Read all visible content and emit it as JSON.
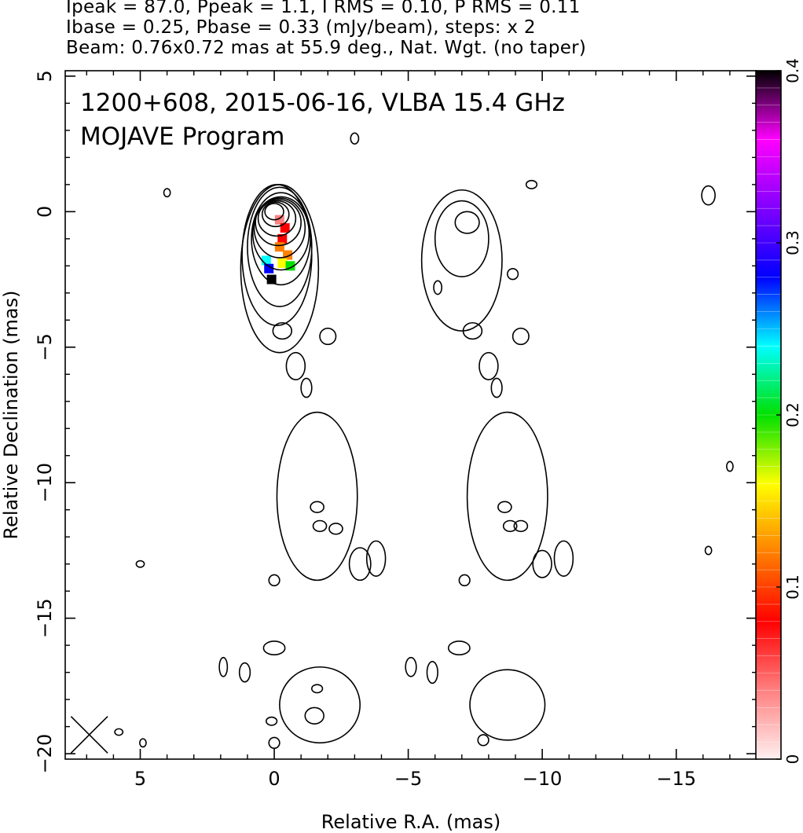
{
  "header": {
    "line1": "Ipeak = 87.0, Ppeak = 1.1, I RMS = 0.10, P RMS = 0.11",
    "line2": "Ibase = 0.25, Pbase = 0.33 (mJy/beam), steps: x 2",
    "line3": "Beam: 0.76x0.72 mas at 55.9 deg., Nat. Wgt. (no taper)"
  },
  "annotations": {
    "source_line": "1200+608, 2015-06-16, VLBA 15.4 GHz",
    "program_line": "MOJAVE Program"
  },
  "colors": {
    "contour": "#000000",
    "colorbar_stops": [
      "#fff0f0",
      "#ff8080",
      "#ff0000",
      "#ff8000",
      "#ffff00",
      "#00e000",
      "#00ffff",
      "#0000ff",
      "#8000ff",
      "#ff00ff",
      "#000000"
    ]
  },
  "chart_data": {
    "type": "heatmap",
    "title": "1200+608, 2015-06-16, VLBA 15.4 GHz",
    "xlabel": "Relative R.A. (mas)",
    "ylabel": "Relative Declination (mas)",
    "xlim": [
      7.8,
      -18.0
    ],
    "ylim": [
      -20.2,
      5.2
    ],
    "x_ticks": [
      5,
      0,
      -5,
      -10,
      -15
    ],
    "x_tick_labels": [
      "5",
      "0",
      "−5",
      "−10",
      "−15"
    ],
    "y_ticks": [
      5,
      0,
      -5,
      -10,
      -15,
      -20
    ],
    "y_tick_labels": [
      "5",
      "0",
      "−5",
      "−10",
      "−15",
      "−20"
    ],
    "colorbar": {
      "range": [
        0,
        0.4
      ],
      "ticks": [
        0,
        0.1,
        0.2,
        0.3,
        0.4
      ],
      "tick_labels": [
        "0",
        "0.1",
        "0.2",
        "0.3",
        "0.4"
      ]
    },
    "core": {
      "ra": 0.0,
      "dec": 0.0
    },
    "contour_levels_mJy_per_beam": [
      0.25,
      0.5,
      1,
      2,
      4,
      8,
      16,
      32,
      64
    ],
    "core_contours": [
      {
        "ra": 0.0,
        "dec": 0.0,
        "a": 0.35,
        "b": 0.3
      },
      {
        "ra": -0.05,
        "dec": -0.1,
        "a": 0.5,
        "b": 0.45
      },
      {
        "ra": -0.1,
        "dec": -0.25,
        "a": 0.7,
        "b": 0.65
      },
      {
        "ra": -0.15,
        "dec": -0.4,
        "a": 0.85,
        "b": 0.85
      },
      {
        "ra": -0.2,
        "dec": -0.6,
        "a": 0.95,
        "b": 1.1
      },
      {
        "ra": -0.25,
        "dec": -0.8,
        "a": 1.05,
        "b": 1.35
      },
      {
        "ra": -0.25,
        "dec": -1.0,
        "a": 1.1,
        "b": 1.7
      },
      {
        "ra": -0.2,
        "dec": -1.3,
        "a": 1.2,
        "b": 2.2
      },
      {
        "ra": -0.1,
        "dec": -1.6,
        "a": 1.3,
        "b": 2.6
      },
      {
        "ra": -0.2,
        "dec": -2.1,
        "a": 1.45,
        "b": 3.1
      }
    ],
    "fractional_polarization": [
      {
        "ra": -0.2,
        "dec": -0.3,
        "value": 0.05
      },
      {
        "ra": -0.4,
        "dec": -0.6,
        "value": 0.06
      },
      {
        "ra": -0.3,
        "dec": -1.0,
        "value": 0.07
      },
      {
        "ra": -0.2,
        "dec": -1.3,
        "value": 0.1
      },
      {
        "ra": -0.5,
        "dec": -1.6,
        "value": 0.12
      },
      {
        "ra": -0.3,
        "dec": -1.9,
        "value": 0.15
      },
      {
        "ra": -0.6,
        "dec": -2.0,
        "value": 0.18
      },
      {
        "ra": 0.3,
        "dec": -1.8,
        "value": 0.25
      },
      {
        "ra": 0.2,
        "dec": -2.1,
        "value": 0.3
      },
      {
        "ra": 0.1,
        "dec": -2.5,
        "value": 0.4
      }
    ],
    "pol_contours": [
      {
        "ra": -7.2,
        "dec": -0.4,
        "a": 0.45,
        "b": 0.4
      },
      {
        "ra": -7.0,
        "dec": -1.0,
        "a": 1.0,
        "b": 1.4
      },
      {
        "ra": -7.0,
        "dec": -1.8,
        "a": 1.5,
        "b": 2.6
      }
    ],
    "spurious_islands": [
      {
        "ra": 4.0,
        "dec": 0.7,
        "a": 0.12,
        "b": 0.15
      },
      {
        "ra": -3.0,
        "dec": 2.7,
        "a": 0.15,
        "b": 0.2
      },
      {
        "ra": -9.6,
        "dec": 1.0,
        "a": 0.2,
        "b": 0.15
      },
      {
        "ra": -16.2,
        "dec": 0.6,
        "a": 0.25,
        "b": 0.35
      },
      {
        "ra": -0.3,
        "dec": -4.4,
        "a": 0.35,
        "b": 0.3
      },
      {
        "ra": -2.0,
        "dec": -4.6,
        "a": 0.3,
        "b": 0.3
      },
      {
        "ra": -0.8,
        "dec": -5.7,
        "a": 0.35,
        "b": 0.5
      },
      {
        "ra": -1.2,
        "dec": -6.5,
        "a": 0.2,
        "b": 0.35
      },
      {
        "ra": -7.4,
        "dec": -4.4,
        "a": 0.35,
        "b": 0.3
      },
      {
        "ra": -9.2,
        "dec": -4.6,
        "a": 0.3,
        "b": 0.3
      },
      {
        "ra": -8.0,
        "dec": -5.7,
        "a": 0.35,
        "b": 0.5
      },
      {
        "ra": -8.3,
        "dec": -6.5,
        "a": 0.2,
        "b": 0.35
      },
      {
        "ra": 0.0,
        "dec": -13.6,
        "a": 0.2,
        "b": 0.2
      },
      {
        "ra": -7.1,
        "dec": -13.6,
        "a": 0.2,
        "b": 0.2
      },
      {
        "ra": 1.9,
        "dec": -16.8,
        "a": 0.15,
        "b": 0.35
      },
      {
        "ra": 1.1,
        "dec": -17.0,
        "a": 0.2,
        "b": 0.35
      },
      {
        "ra": -5.1,
        "dec": -16.8,
        "a": 0.2,
        "b": 0.35
      },
      {
        "ra": -5.9,
        "dec": -17.0,
        "a": 0.2,
        "b": 0.4
      },
      {
        "ra": 0.0,
        "dec": -16.1,
        "a": 0.4,
        "b": 0.25
      },
      {
        "ra": -6.9,
        "dec": -16.1,
        "a": 0.4,
        "b": 0.25
      },
      {
        "ra": 0.0,
        "dec": -19.6,
        "a": 0.2,
        "b": 0.2
      },
      {
        "ra": -7.8,
        "dec": -19.5,
        "a": 0.2,
        "b": 0.2
      },
      {
        "ra": 0.1,
        "dec": -18.8,
        "a": 0.2,
        "b": 0.15
      },
      {
        "ra": 5.0,
        "dec": -13.0,
        "a": 0.15,
        "b": 0.12
      },
      {
        "ra": 4.9,
        "dec": -19.6,
        "a": 0.12,
        "b": 0.15
      },
      {
        "ra": 5.8,
        "dec": -19.2,
        "a": 0.15,
        "b": 0.12
      },
      {
        "ra": -16.2,
        "dec": -12.5,
        "a": 0.12,
        "b": 0.15
      },
      {
        "ra": -17.0,
        "dec": -9.4,
        "a": 0.12,
        "b": 0.18
      },
      {
        "ra": -6.1,
        "dec": -2.8,
        "a": 0.15,
        "b": 0.25
      },
      {
        "ra": -8.9,
        "dec": -2.3,
        "a": 0.2,
        "b": 0.2
      },
      {
        "ra": -1.7,
        "dec": -11.6,
        "a": 0.25,
        "b": 0.2
      },
      {
        "ra": -8.8,
        "dec": -11.6,
        "a": 0.25,
        "b": 0.2
      }
    ],
    "extended_regions": [
      {
        "ra": -1.6,
        "dec": -10.5,
        "a": 1.5,
        "b": 3.1
      },
      {
        "ra": -8.7,
        "dec": -10.5,
        "a": 1.5,
        "b": 3.1
      },
      {
        "ra": -1.7,
        "dec": -18.2,
        "a": 1.5,
        "b": 1.4
      },
      {
        "ra": -8.7,
        "dec": -18.2,
        "a": 1.4,
        "b": 1.3
      },
      {
        "ra": -3.8,
        "dec": -12.8,
        "a": 0.35,
        "b": 0.65
      },
      {
        "ra": -3.2,
        "dec": -13.0,
        "a": 0.4,
        "b": 0.6
      },
      {
        "ra": -10.8,
        "dec": -12.8,
        "a": 0.35,
        "b": 0.65
      },
      {
        "ra": -10.0,
        "dec": -13.0,
        "a": 0.35,
        "b": 0.5
      },
      {
        "ra": -1.6,
        "dec": -10.9,
        "a": 0.25,
        "b": 0.2
      },
      {
        "ra": -2.3,
        "dec": -11.7,
        "a": 0.25,
        "b": 0.2
      },
      {
        "ra": -1.5,
        "dec": -18.6,
        "a": 0.35,
        "b": 0.3
      },
      {
        "ra": -1.6,
        "dec": -17.6,
        "a": 0.2,
        "b": 0.15
      },
      {
        "ra": -9.2,
        "dec": -11.6,
        "a": 0.25,
        "b": 0.2
      },
      {
        "ra": -8.6,
        "dec": -10.9,
        "a": 0.25,
        "b": 0.2
      }
    ],
    "beam": {
      "major_mas": 0.76,
      "minor_mas": 0.72,
      "pa_deg": 55.9,
      "ra": 6.9,
      "dec": -19.3
    }
  }
}
